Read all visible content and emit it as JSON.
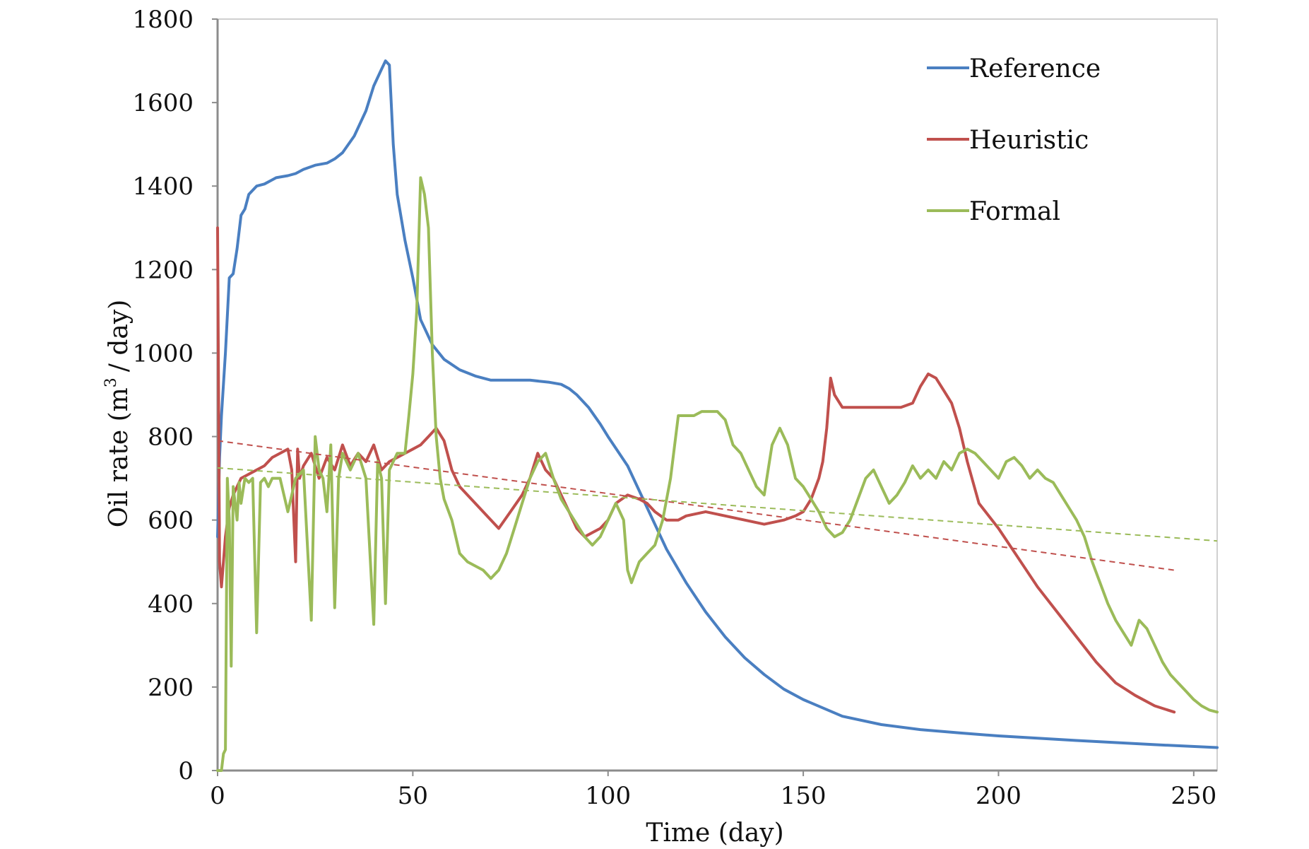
{
  "chart_data": {
    "type": "line",
    "title": "",
    "xlabel": "Time (day)",
    "ylabel_main": "Oil rate (m",
    "ylabel_sup": "3",
    "ylabel_tail": "/ day)",
    "xlim": [
      0,
      256
    ],
    "ylim": [
      0,
      1800
    ],
    "x_ticks": [
      0,
      50,
      100,
      150,
      200,
      250
    ],
    "y_ticks": [
      0,
      200,
      400,
      600,
      800,
      1000,
      1200,
      1400,
      1600,
      1800
    ],
    "grid": false,
    "legend_position": "top-right",
    "series": [
      {
        "name": "Reference",
        "color": "#4a7fc1",
        "x": [
          0,
          0.5,
          1,
          2,
          3,
          4,
          5,
          6,
          7,
          8,
          10,
          12,
          15,
          18,
          20,
          22,
          25,
          28,
          30,
          32,
          35,
          38,
          40,
          42,
          43,
          44,
          45,
          46,
          48,
          50,
          52,
          55,
          58,
          62,
          66,
          70,
          75,
          80,
          85,
          88,
          90,
          92,
          95,
          98,
          100,
          105,
          110,
          115,
          120,
          125,
          130,
          135,
          140,
          145,
          150,
          160,
          170,
          180,
          190,
          200,
          220,
          240,
          256
        ],
        "y": [
          560,
          750,
          850,
          1000,
          1180,
          1190,
          1250,
          1330,
          1345,
          1380,
          1400,
          1405,
          1420,
          1425,
          1430,
          1440,
          1450,
          1455,
          1465,
          1480,
          1520,
          1580,
          1640,
          1680,
          1700,
          1690,
          1500,
          1380,
          1270,
          1180,
          1080,
          1020,
          985,
          960,
          945,
          935,
          935,
          935,
          930,
          925,
          915,
          900,
          870,
          830,
          800,
          730,
          630,
          530,
          450,
          380,
          320,
          270,
          230,
          195,
          170,
          130,
          110,
          98,
          90,
          83,
          72,
          62,
          55
        ]
      },
      {
        "name": "Heuristic",
        "color": "#c0504d",
        "x": [
          0,
          0.5,
          1,
          2,
          3,
          4,
          6,
          8,
          10,
          12,
          14,
          16,
          18,
          19,
          20,
          20.5,
          21,
          22,
          24,
          26,
          28,
          30,
          32,
          34,
          36,
          38,
          40,
          42,
          44,
          46,
          48,
          50,
          52,
          54,
          56,
          58,
          60,
          62,
          65,
          68,
          72,
          75,
          78,
          80,
          82,
          84,
          86,
          88,
          90,
          92,
          94,
          96,
          98,
          100,
          102,
          105,
          108,
          110,
          112,
          115,
          118,
          120,
          125,
          130,
          135,
          140,
          145,
          148,
          150,
          152,
          154,
          155,
          156,
          157,
          158,
          160,
          165,
          170,
          175,
          178,
          180,
          182,
          184,
          186,
          188,
          190,
          192,
          195,
          200,
          205,
          210,
          215,
          220,
          225,
          230,
          235,
          240,
          245
        ],
        "y": [
          1300,
          500,
          440,
          560,
          630,
          660,
          700,
          710,
          720,
          730,
          750,
          760,
          770,
          720,
          500,
          770,
          700,
          730,
          760,
          700,
          750,
          720,
          780,
          730,
          760,
          740,
          780,
          720,
          740,
          750,
          760,
          770,
          780,
          800,
          820,
          790,
          720,
          680,
          650,
          620,
          580,
          620,
          660,
          700,
          760,
          720,
          700,
          660,
          620,
          580,
          560,
          570,
          580,
          600,
          640,
          660,
          650,
          640,
          620,
          600,
          600,
          610,
          620,
          610,
          600,
          590,
          600,
          610,
          620,
          650,
          700,
          740,
          820,
          940,
          900,
          870,
          870,
          870,
          870,
          880,
          920,
          950,
          940,
          910,
          880,
          820,
          740,
          640,
          580,
          510,
          440,
          380,
          320,
          260,
          210,
          180,
          155,
          140
        ]
      },
      {
        "name": "Formal",
        "color": "#9bbb59",
        "x": [
          0,
          1,
          1.5,
          2,
          2.5,
          3,
          3.5,
          4,
          5,
          5.5,
          6,
          7,
          8,
          9,
          10,
          11,
          12,
          13,
          14,
          16,
          18,
          20,
          22,
          24,
          25,
          26,
          27,
          28,
          29,
          30,
          31,
          32,
          34,
          36,
          38,
          40,
          41,
          42,
          43,
          44,
          46,
          48,
          49,
          50,
          51,
          52,
          53,
          54,
          55,
          56,
          57,
          58,
          60,
          62,
          64,
          66,
          68,
          70,
          72,
          74,
          76,
          78,
          80,
          82,
          84,
          86,
          88,
          90,
          92,
          94,
          96,
          98,
          100,
          102,
          104,
          105,
          106,
          108,
          110,
          112,
          114,
          116,
          118,
          120,
          122,
          124,
          126,
          128,
          130,
          132,
          134,
          136,
          138,
          140,
          142,
          144,
          146,
          148,
          150,
          152,
          154,
          156,
          158,
          160,
          162,
          164,
          166,
          168,
          170,
          172,
          174,
          176,
          178,
          180,
          182,
          184,
          186,
          188,
          190,
          192,
          194,
          196,
          198,
          200,
          202,
          204,
          206,
          208,
          210,
          212,
          214,
          216,
          218,
          220,
          222,
          224,
          226,
          228,
          230,
          232,
          234,
          236,
          238,
          240,
          242,
          244,
          246,
          248,
          250,
          252,
          254,
          256
        ],
        "y": [
          0,
          0,
          40,
          50,
          700,
          600,
          250,
          680,
          600,
          690,
          640,
          700,
          690,
          700,
          330,
          690,
          700,
          680,
          700,
          700,
          620,
          700,
          720,
          360,
          800,
          720,
          700,
          620,
          780,
          390,
          700,
          760,
          720,
          760,
          700,
          350,
          740,
          700,
          400,
          720,
          760,
          760,
          850,
          950,
          1100,
          1420,
          1380,
          1300,
          1000,
          800,
          700,
          650,
          600,
          520,
          500,
          490,
          480,
          460,
          480,
          520,
          580,
          640,
          700,
          740,
          760,
          700,
          650,
          620,
          590,
          560,
          540,
          560,
          600,
          640,
          600,
          480,
          450,
          500,
          520,
          540,
          600,
          700,
          850,
          850,
          850,
          860,
          860,
          860,
          840,
          780,
          760,
          720,
          680,
          660,
          780,
          820,
          780,
          700,
          680,
          650,
          620,
          580,
          560,
          570,
          600,
          650,
          700,
          720,
          680,
          640,
          660,
          690,
          730,
          700,
          720,
          700,
          740,
          720,
          760,
          770,
          760,
          740,
          720,
          700,
          740,
          750,
          730,
          700,
          720,
          700,
          690,
          660,
          630,
          600,
          560,
          500,
          450,
          400,
          360,
          330,
          300,
          360,
          340,
          300,
          260,
          230,
          210,
          190,
          170,
          155,
          145,
          140
        ]
      }
    ],
    "trendlines": [
      {
        "series": "Heuristic",
        "color": "#c0504d",
        "x": [
          0,
          245
        ],
        "y": [
          790,
          480
        ]
      },
      {
        "series": "Formal",
        "color": "#9bbb59",
        "x": [
          0,
          256
        ],
        "y": [
          725,
          550
        ]
      }
    ]
  }
}
